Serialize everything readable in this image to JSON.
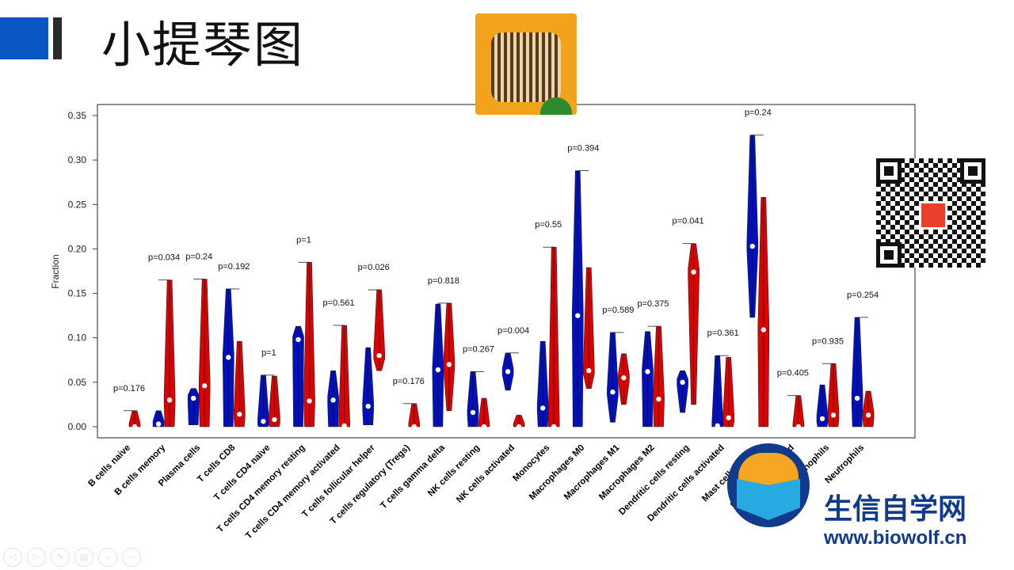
{
  "slide": {
    "title": "小提琴图"
  },
  "watermark": {
    "brand_cn": "生信自学网",
    "url": "www.biowolf.cn"
  },
  "toolbar": {
    "buttons": [
      "previous-icon",
      "next-icon",
      "pen-icon",
      "slides-icon",
      "zoom-icon",
      "more-icon"
    ],
    "glyphs": [
      "◁",
      "▷",
      "✎",
      "▤",
      "⌕",
      "⋯"
    ]
  },
  "chart_data": {
    "type": "violin",
    "ylabel": "Fraction",
    "xlabel": "",
    "ylim": [
      0,
      0.35
    ],
    "yticks": [
      "0.00",
      "0.05",
      "0.10",
      "0.15",
      "0.20",
      "0.25",
      "0.30",
      "0.35"
    ],
    "colors": {
      "group1": "#0010c0",
      "group2": "#e00000"
    },
    "categories": [
      "B cells naive",
      "B cells memory",
      "Plasma cells",
      "T cells CD8",
      "T cells CD4 naive",
      "T cells CD4 memory resting",
      "T cells CD4 memory activated",
      "T cells follicular helper",
      "T cells regulatory (Tregs)",
      "T cells gamma delta",
      "NK cells resting",
      "NK cells activated",
      "Monocytes",
      "Macrophages M0",
      "Macrophages M1",
      "Macrophages M2",
      "Dendritic cells resting",
      "Dendritic cells activated",
      "Mast cells resting",
      "Mast cells activated",
      "Eosinophils",
      "Neutrophils"
    ],
    "pvalues": [
      "p=0.176",
      "p=0.034",
      "p=0.24",
      "p=0.192",
      "p=1",
      "p=1",
      "p=0.561",
      "p=0.026",
      "p=0.176",
      "p=0.818",
      "p=0.267",
      "p=0.004",
      "p=0.55",
      "p=0.394",
      "p=0.589",
      "p=0.375",
      "p=0.041",
      "p=0.361",
      "p=0.24",
      "p=0.405",
      "p=0.935",
      "p=0.254"
    ],
    "series": [
      {
        "name": "group1 (blue)",
        "min": [
          null,
          0,
          0.002,
          0,
          0,
          0,
          0,
          0.002,
          null,
          0,
          0,
          0.041,
          0,
          0,
          0.005,
          0,
          0.016,
          0,
          0.123,
          null,
          0,
          0
        ],
        "median": [
          null,
          0.003,
          0.032,
          0.078,
          0.006,
          0.098,
          0.03,
          0.023,
          null,
          0.064,
          0.016,
          0.062,
          0.021,
          0.125,
          0.039,
          0.062,
          0.05,
          0.001,
          0.203,
          null,
          0.009,
          0.032
        ],
        "max": [
          null,
          0.018,
          0.043,
          0.155,
          0.058,
          0.113,
          0.063,
          0.089,
          null,
          0.138,
          0.062,
          0.083,
          0.096,
          0.288,
          0.106,
          0.107,
          0.063,
          0.08,
          0.328,
          null,
          0.047,
          0.123
        ]
      },
      {
        "name": "group2 (red)",
        "min": [
          0,
          0,
          0,
          0,
          0,
          0,
          0,
          0.063,
          0,
          0.018,
          0,
          0,
          0,
          0.043,
          0.025,
          0,
          0.025,
          0,
          0,
          0,
          0,
          0
        ],
        "median": [
          0,
          0.03,
          0.046,
          0.014,
          0.008,
          0.029,
          0.001,
          0.08,
          0,
          0.07,
          0,
          0,
          0,
          0.063,
          0.055,
          0.031,
          0.174,
          0.01,
          0.109,
          0,
          0.013,
          0.013
        ],
        "max": [
          0.018,
          0.165,
          0.166,
          0.096,
          0.057,
          0.185,
          0.114,
          0.154,
          0.026,
          0.139,
          0.032,
          0.013,
          0.202,
          0.179,
          0.082,
          0.113,
          0.206,
          0.078,
          0.258,
          0.035,
          0.071,
          0.04
        ]
      }
    ]
  }
}
